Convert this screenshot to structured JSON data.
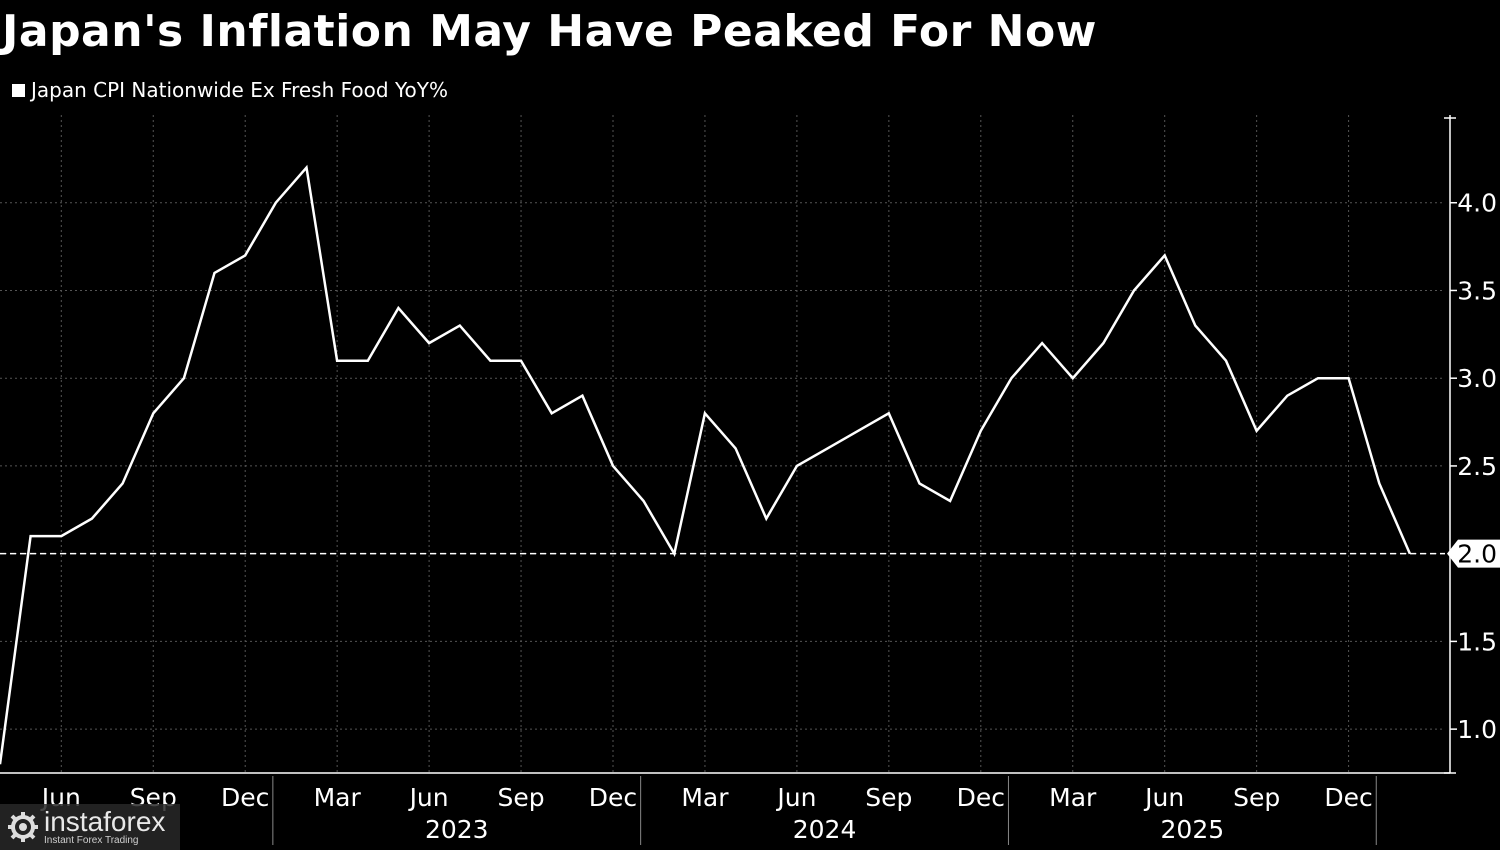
{
  "title": "Japan's Inflation May Have Peaked For Now",
  "watermark": {
    "name": "instaforex",
    "tagline": "Instant Forex Trading"
  },
  "chart_data": {
    "type": "line",
    "title": "Japan's Inflation May Have Peaked For Now",
    "series": [
      {
        "name": "Japan CPI Nationwide Ex Fresh Food YoY%",
        "color": "#ffffff",
        "x": [
          "2022-04",
          "2022-05",
          "2022-06",
          "2022-07",
          "2022-08",
          "2022-09",
          "2022-10",
          "2022-11",
          "2022-12",
          "2023-01",
          "2023-02",
          "2023-03",
          "2023-04",
          "2023-05",
          "2023-06",
          "2023-07",
          "2023-08",
          "2023-09",
          "2023-10",
          "2023-11",
          "2023-12",
          "2024-01",
          "2024-02",
          "2024-03",
          "2024-04",
          "2024-05",
          "2024-06",
          "2024-07",
          "2024-08",
          "2024-09",
          "2024-10",
          "2024-11",
          "2024-12",
          "2025-01",
          "2025-02",
          "2025-03",
          "2025-04",
          "2025-05",
          "2025-06",
          "2025-07",
          "2025-08",
          "2025-09",
          "2025-10",
          "2025-11",
          "2025-12",
          "2026-01",
          "2026-02"
        ],
        "values": [
          0.8,
          2.1,
          2.1,
          2.2,
          2.4,
          2.8,
          3.0,
          3.6,
          3.7,
          4.0,
          4.2,
          3.1,
          3.1,
          3.4,
          3.2,
          3.3,
          3.1,
          3.1,
          2.8,
          2.9,
          2.5,
          2.3,
          2.0,
          2.8,
          2.6,
          2.2,
          2.5,
          2.6,
          2.7,
          2.8,
          2.4,
          2.3,
          2.7,
          3.0,
          3.2,
          3.0,
          3.2,
          3.5,
          3.7,
          3.3,
          3.1,
          2.7,
          2.9,
          3.0,
          3.0,
          2.4,
          2.0
        ]
      }
    ],
    "x_month_labels": [
      "Jun",
      "Sep",
      "Dec",
      "Mar",
      "Jun",
      "Sep",
      "Dec",
      "Mar",
      "Jun",
      "Sep",
      "Dec",
      "Mar",
      "Jun",
      "Sep",
      "Dec"
    ],
    "x_month_dates": [
      "2022-06",
      "2022-09",
      "2022-12",
      "2023-03",
      "2023-06",
      "2023-09",
      "2023-12",
      "2024-03",
      "2024-06",
      "2024-09",
      "2024-12",
      "2025-03",
      "2025-06",
      "2025-09",
      "2025-12"
    ],
    "x_year_labels": [
      "2023",
      "2024",
      "2025"
    ],
    "y_ticks": [
      1.0,
      1.5,
      2.0,
      2.5,
      3.0,
      3.5,
      4.0
    ],
    "y_tick_labels": [
      "1.0",
      "1.5",
      "2.0",
      "2.5",
      "3.0",
      "3.5",
      "4.0"
    ],
    "ylim": [
      0.75,
      4.5
    ],
    "xlim": [
      "2022-04",
      "2026-03"
    ],
    "reference_line": 2.0,
    "last_value_label": "2.0",
    "y_axis_position": "right",
    "legend_position": "top-left",
    "grid": true
  }
}
